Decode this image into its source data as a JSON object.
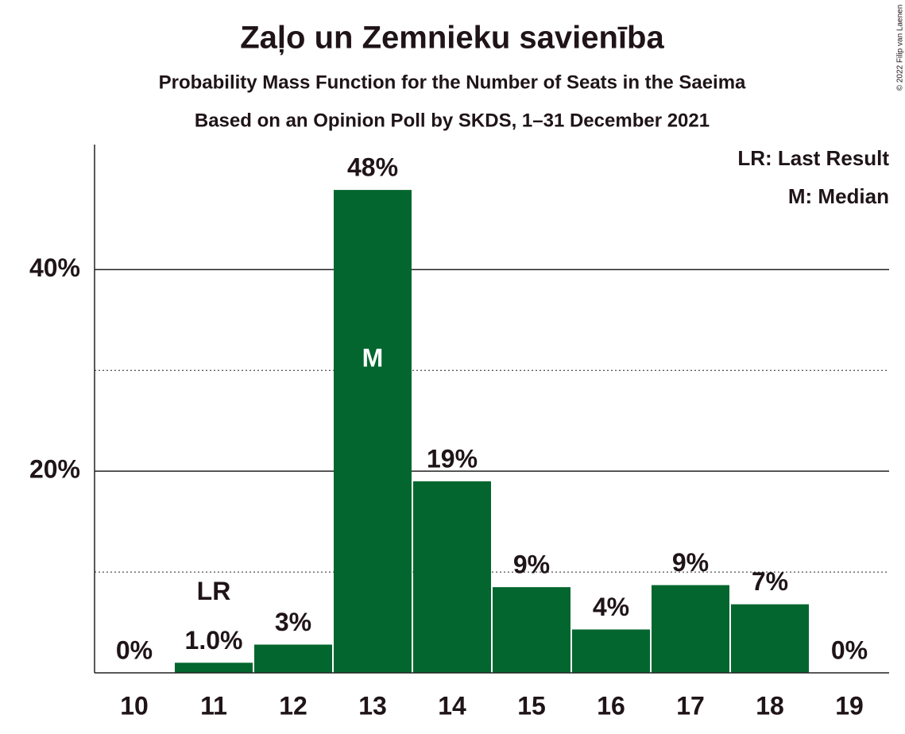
{
  "chart_data": {
    "type": "bar",
    "title": "Zaļo un Zemnieku savienība",
    "subtitle": "Probability Mass Function for the Number of Seats in the Saeima",
    "subtitle2": "Based on an Opinion Poll by SKDS, 1–31 December 2021",
    "categories": [
      "10",
      "11",
      "12",
      "13",
      "14",
      "15",
      "16",
      "17",
      "18",
      "19"
    ],
    "values": [
      0,
      1.0,
      2.8,
      47.9,
      19.0,
      8.5,
      4.3,
      8.7,
      6.8,
      0
    ],
    "value_labels": [
      "0%",
      "1.0%",
      "3%",
      "48%",
      "19%",
      "9%",
      "4%",
      "9%",
      "7%",
      "0%"
    ],
    "color": "#03662e",
    "ylim": [
      0,
      52.4
    ],
    "yticks": [
      {
        "value": 20,
        "label": "20%"
      },
      {
        "value": 40,
        "label": "40%"
      }
    ],
    "minor_gridlines": [
      10,
      30
    ],
    "grid": true,
    "annotations": [
      {
        "category": "11",
        "text": "LR"
      },
      {
        "category": "13",
        "text": "M"
      }
    ],
    "legend": [
      "LR: Last Result",
      "M: Median"
    ],
    "legend_position": "top-right",
    "copyright": "© 2022 Filip van Laenen"
  }
}
